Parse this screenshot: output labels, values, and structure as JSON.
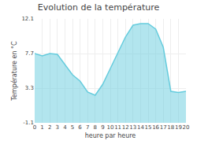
{
  "chart_data": {
    "type": "area",
    "title": "Evolution de la température",
    "xlabel": "heure par heure",
    "ylabel": "Température en °C",
    "x": [
      0,
      1,
      2,
      3,
      4,
      5,
      6,
      7,
      8,
      9,
      10,
      11,
      12,
      13,
      14,
      15,
      16,
      17,
      18,
      19,
      20
    ],
    "values": [
      7.7,
      7.4,
      7.7,
      7.6,
      6.3,
      5.0,
      4.2,
      2.8,
      2.4,
      3.8,
      5.8,
      7.8,
      9.8,
      11.3,
      11.5,
      11.5,
      10.8,
      8.5,
      2.9,
      2.75,
      2.9
    ],
    "color": "#66ccdd",
    "xlim": [
      0,
      20
    ],
    "xticks": [
      0,
      1,
      2,
      3,
      4,
      5,
      6,
      7,
      8,
      9,
      10,
      11,
      12,
      13,
      14,
      15,
      16,
      17,
      18,
      19,
      20
    ],
    "ylim": [
      -1.1,
      12.1
    ],
    "yticks": [
      -1.1,
      3.3,
      7.7,
      12.1
    ],
    "grid": true
  }
}
